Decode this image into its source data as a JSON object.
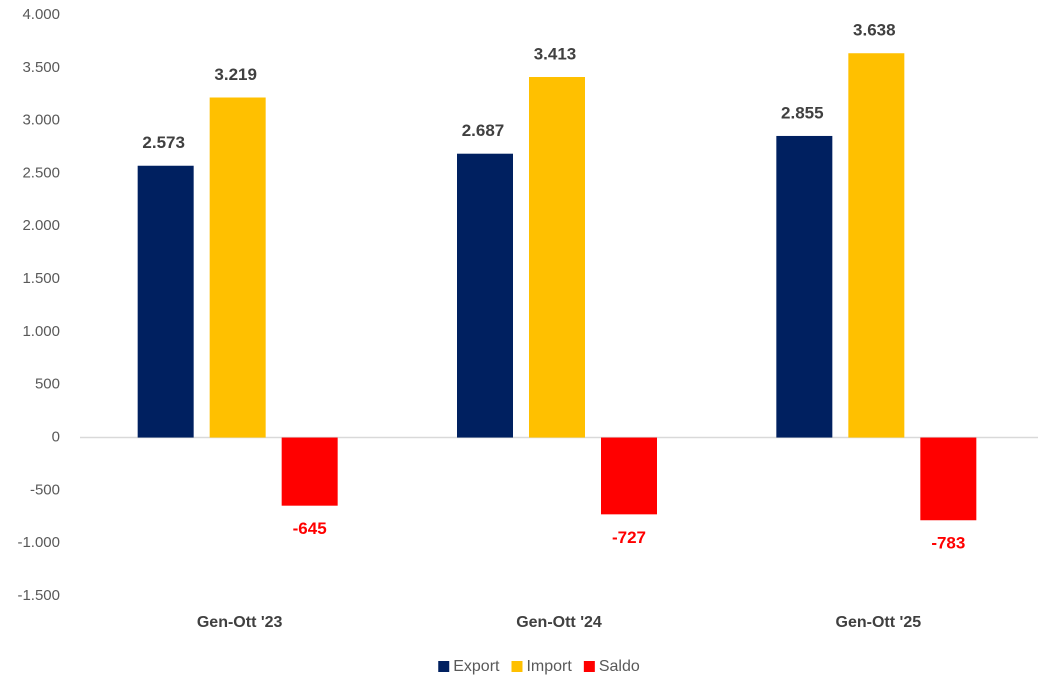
{
  "chart_data": {
    "type": "bar",
    "categories": [
      "Gen-Ott '23",
      "Gen-Ott '24",
      "Gen-Ott '25"
    ],
    "series": [
      {
        "name": "Export",
        "color": "#002060",
        "values": [
          2573,
          2687,
          2855
        ],
        "value_labels": [
          "2.573",
          "2.687",
          "2.855"
        ]
      },
      {
        "name": "Import",
        "color": "#FFC000",
        "values": [
          3219,
          3413,
          3638
        ],
        "value_labels": [
          "3.219",
          "3.413",
          "3.638"
        ]
      },
      {
        "name": "Saldo",
        "color": "#FF0000",
        "values": [
          -645,
          -727,
          -783
        ]
      }
    ],
    "ylim": [
      -1500,
      4000
    ],
    "yticks": [
      {
        "value": -1500,
        "label": "-1.500"
      },
      {
        "value": -1000,
        "label": "-1.000"
      },
      -500,
      0,
      500,
      {
        "value": 1000,
        "label": "1.000"
      },
      {
        "value": 1500,
        "label": "1.500"
      },
      {
        "value": 2000,
        "label": "2.000"
      },
      {
        "value": 2500,
        "label": "2.500"
      },
      {
        "value": 3000,
        "label": "3.000"
      },
      {
        "value": 3500,
        "label": "3.500"
      },
      {
        "value": 4000,
        "label": "4.000"
      }
    ],
    "legend": "bottom"
  }
}
